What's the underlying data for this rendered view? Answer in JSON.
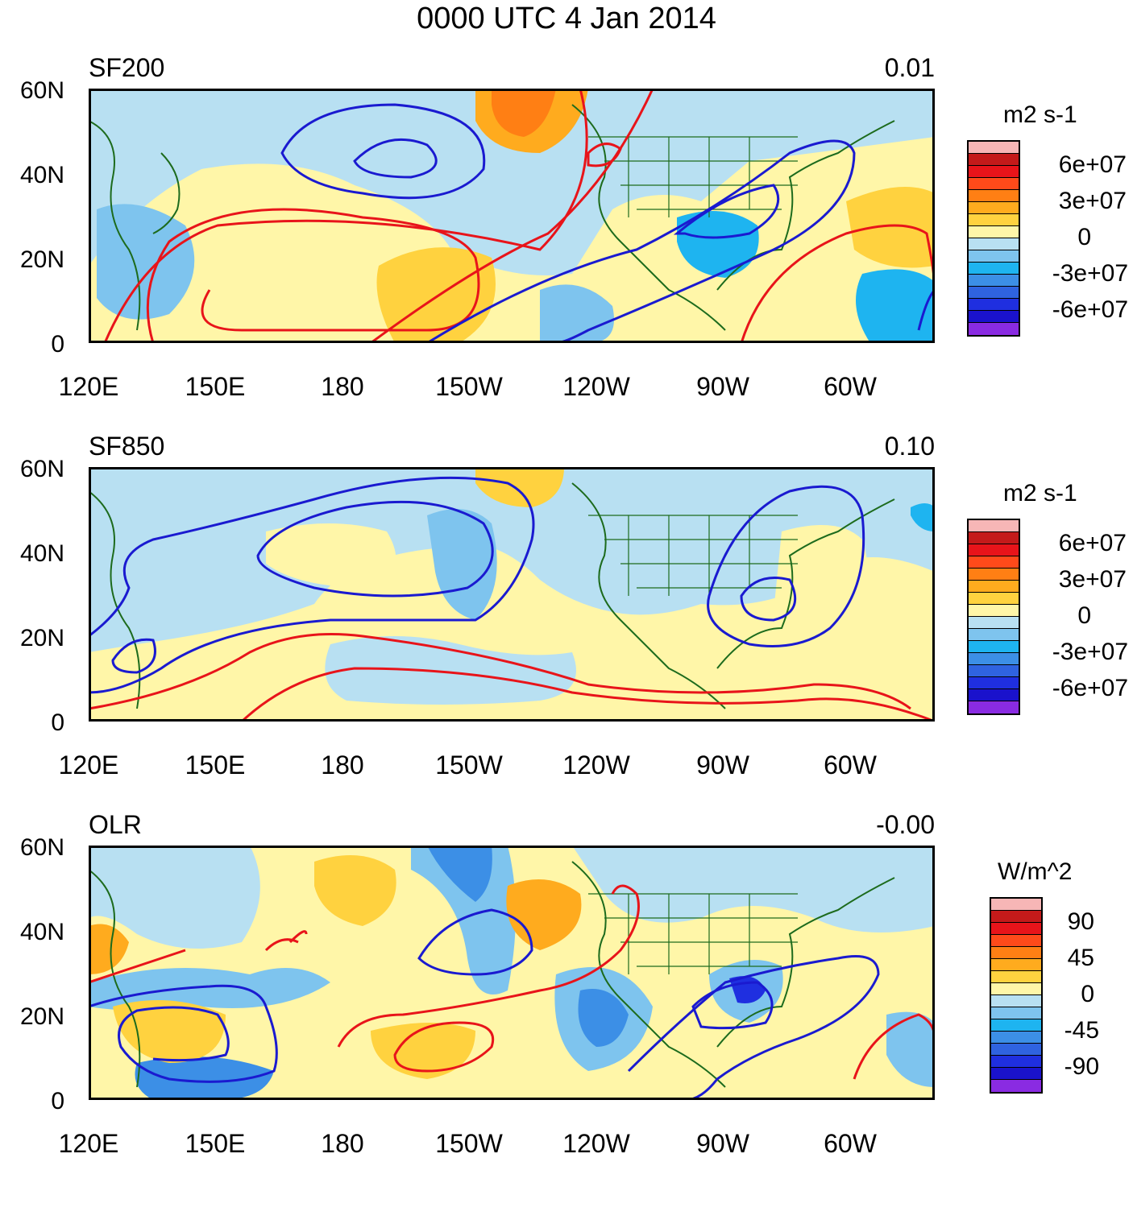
{
  "title": "0000 UTC 4 Jan 2014",
  "x_ticks": [
    "120E",
    "150E",
    "180",
    "150W",
    "120W",
    "90W",
    "60W"
  ],
  "y_ticks": [
    "60N",
    "40N",
    "20N",
    "0"
  ],
  "panels": [
    {
      "name": "SF200",
      "value": "0.01",
      "units": "m2 s-1",
      "colorbar_labels": [
        "6e+07",
        "3e+07",
        "0",
        "-3e+07",
        "-6e+07"
      ]
    },
    {
      "name": "SF850",
      "value": "0.10",
      "units": "m2 s-1",
      "colorbar_labels": [
        "6e+07",
        "3e+07",
        "0",
        "-3e+07",
        "-6e+07"
      ]
    },
    {
      "name": "OLR",
      "value": "-0.00",
      "units": "W/m^2",
      "colorbar_labels": [
        "90",
        "45",
        "0",
        "-45",
        "-90"
      ]
    }
  ],
  "colors": {
    "palette": [
      "#f7b6b6",
      "#c41a1a",
      "#e8141a",
      "#ff4a1a",
      "#ff7f14",
      "#ffab1e",
      "#ffd23f",
      "#fff6a8",
      "#b8e0f2",
      "#7ec4ee",
      "#1eb4f0",
      "#3c8fe6",
      "#2f63e0",
      "#1f2fe0",
      "#1a12cc",
      "#8a2be2"
    ],
    "contour_pos": "#e8141a",
    "contour_neg": "#1a1ad0",
    "coast": "#1d6b1d"
  }
}
